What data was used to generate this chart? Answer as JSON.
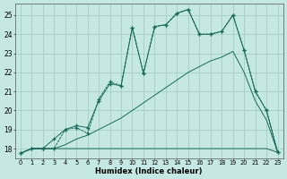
{
  "xlabel": "Humidex (Indice chaleur)",
  "bg_color": "#c5e8e3",
  "grid_color": "#9fc8c0",
  "line_color": "#1a6b5a",
  "xlim": [
    -0.5,
    23.5
  ],
  "ylim": [
    17.5,
    25.6
  ],
  "yticks": [
    18,
    19,
    20,
    21,
    22,
    23,
    24,
    25
  ],
  "xticks": [
    0,
    1,
    2,
    3,
    4,
    5,
    6,
    7,
    8,
    9,
    10,
    11,
    12,
    13,
    14,
    15,
    16,
    17,
    18,
    19,
    20,
    21,
    22,
    23
  ],
  "line_flat_x": [
    0,
    1,
    2,
    3,
    4,
    5,
    6,
    7,
    8,
    9,
    10,
    11,
    12,
    13,
    14,
    15,
    16,
    17,
    18,
    19,
    20,
    21,
    22,
    23
  ],
  "line_flat_y": [
    17.75,
    18.0,
    18.0,
    18.0,
    18.0,
    18.0,
    18.0,
    18.0,
    18.0,
    18.0,
    18.0,
    18.0,
    18.0,
    18.0,
    18.0,
    18.0,
    18.0,
    18.0,
    18.0,
    18.0,
    18.0,
    18.0,
    18.0,
    17.8
  ],
  "line_diag_x": [
    0,
    1,
    2,
    3,
    4,
    5,
    6,
    7,
    8,
    9,
    10,
    11,
    12,
    13,
    14,
    15,
    16,
    17,
    18,
    19,
    20,
    21,
    22,
    23
  ],
  "line_diag_y": [
    17.75,
    18.0,
    18.0,
    18.0,
    18.2,
    18.5,
    18.7,
    19.0,
    19.3,
    19.6,
    20.0,
    20.4,
    20.8,
    21.2,
    21.6,
    22.0,
    22.3,
    22.6,
    22.8,
    23.1,
    22.0,
    20.5,
    19.5,
    17.8
  ],
  "line_jagged_x": [
    0,
    1,
    2,
    3,
    4,
    5,
    6,
    7,
    8,
    9,
    10,
    11,
    12,
    13,
    14,
    15,
    16,
    17,
    18,
    19,
    20,
    21,
    22,
    23
  ],
  "line_jagged_y": [
    17.75,
    18.0,
    18.0,
    18.0,
    19.0,
    19.1,
    18.8,
    20.6,
    21.5,
    21.3,
    24.35,
    21.95,
    24.4,
    24.5,
    25.1,
    25.3,
    24.0,
    24.0,
    24.15,
    25.0,
    23.15,
    21.0,
    20.0,
    17.8
  ],
  "line_smooth2_x": [
    0,
    1,
    2,
    3,
    4,
    5,
    6,
    7,
    8,
    9,
    10,
    11,
    12,
    13,
    14,
    15,
    16,
    17,
    18,
    19,
    20,
    21,
    22,
    23
  ],
  "line_smooth2_y": [
    17.75,
    18.0,
    18.0,
    18.5,
    19.0,
    19.2,
    19.1,
    20.5,
    21.4,
    21.3,
    24.35,
    21.95,
    24.4,
    24.5,
    25.1,
    25.3,
    24.0,
    24.0,
    24.15,
    25.0,
    23.15,
    21.0,
    20.0,
    17.8
  ]
}
